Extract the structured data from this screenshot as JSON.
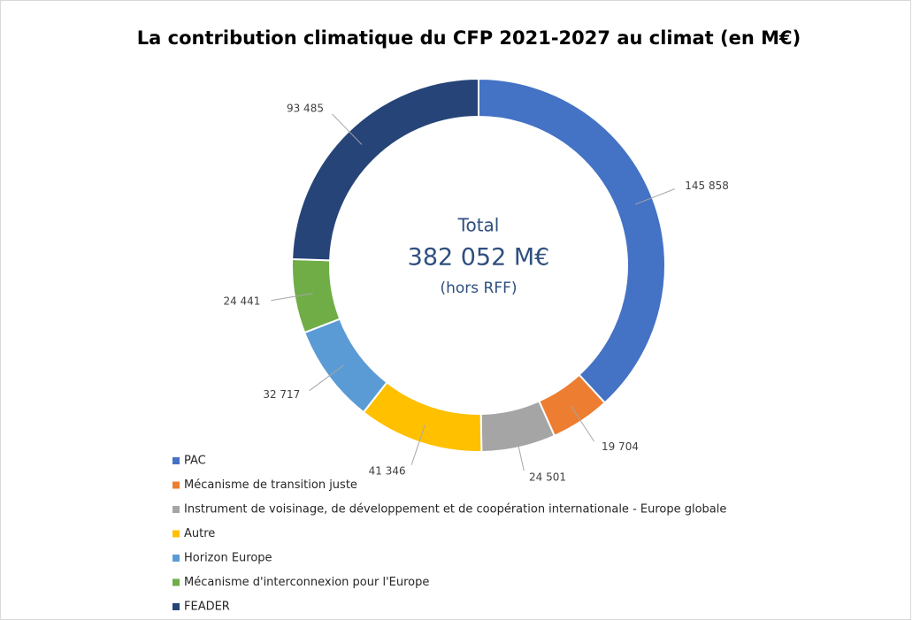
{
  "chart_data": {
    "type": "donut",
    "title": "La contribution climatique du CFP 2021-2027 au climat (en M€)",
    "annotations": [
      "Total",
      "382 052 M€",
      "(hors RFF)"
    ],
    "categories": [
      "PAC",
      "Mécanisme de transition juste",
      "Instrument de voisinage, de développement et de coopération internationale - Europe globale",
      "Autre",
      "Horizon Europe",
      "Mécanisme d'interconnexion pour l'Europe",
      "FEADER"
    ],
    "values": [
      145858,
      19704,
      24501,
      41346,
      32717,
      24441,
      93485
    ],
    "value_labels": [
      "145 858",
      "19 704",
      "24 501",
      "41 346",
      "32 717",
      "24 441",
      "93 485"
    ],
    "colors": [
      "#4472c4",
      "#ed7d31",
      "#a5a5a5",
      "#ffc000",
      "#5b9bd5",
      "#70ad47",
      "#264478"
    ],
    "legend": "bottom-left"
  }
}
